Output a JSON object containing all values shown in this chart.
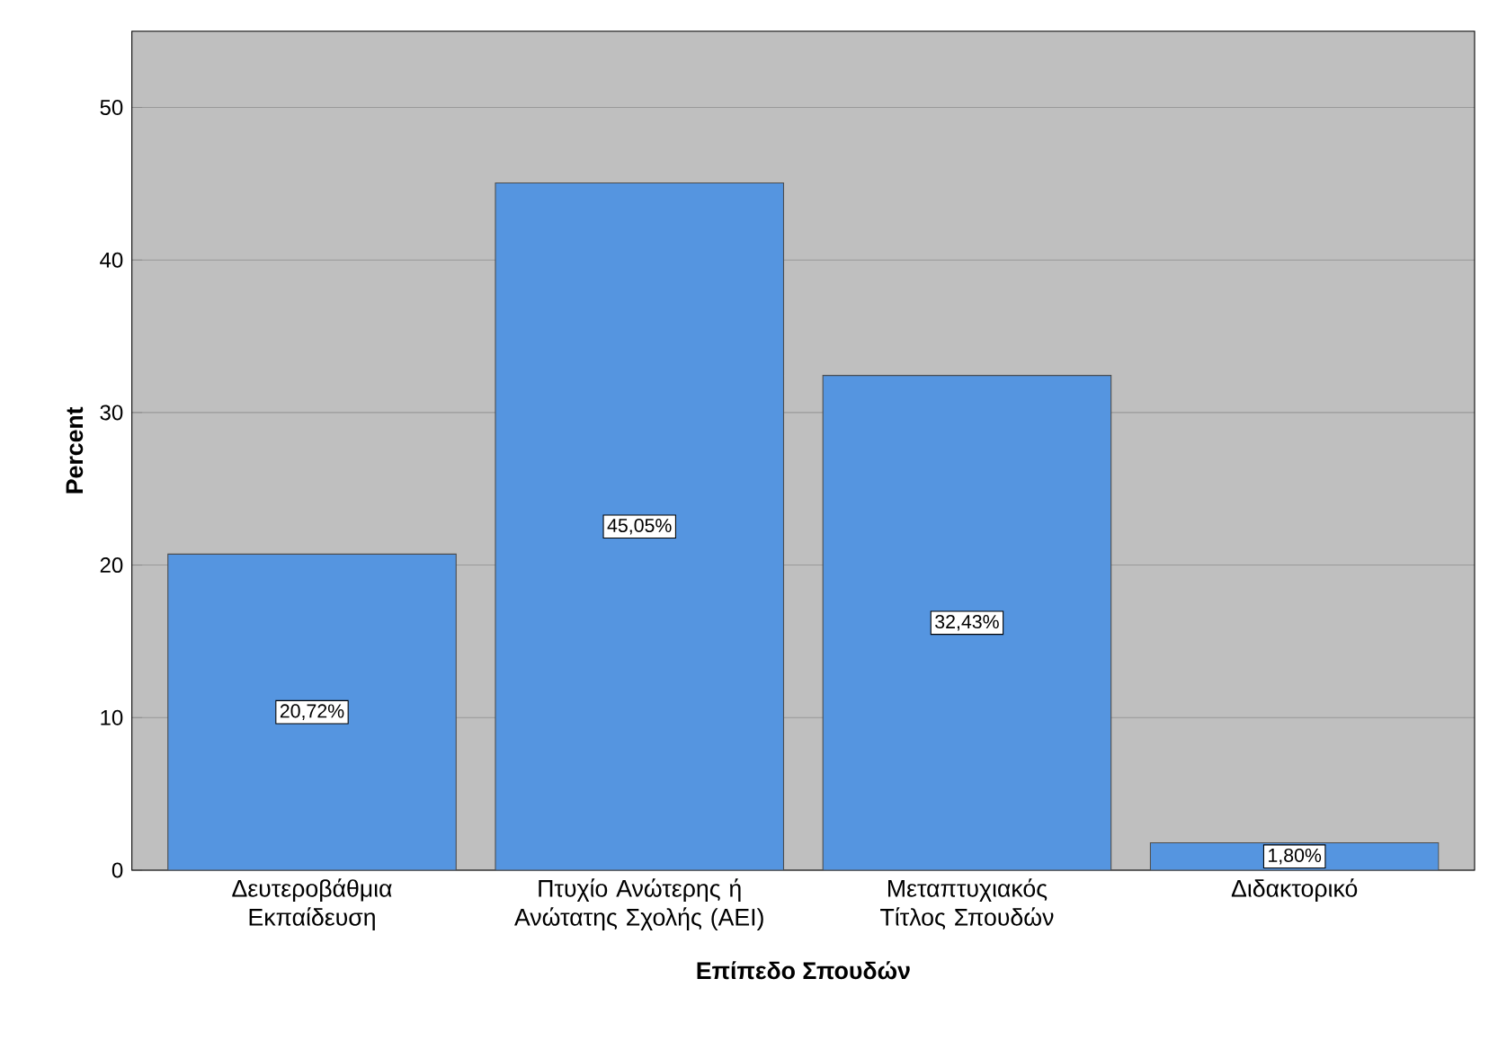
{
  "chart_data": {
    "type": "bar",
    "xlabel": "Επίπεδο Σπουδών",
    "ylabel": "Percent",
    "categories": [
      "Δευτεροβάθμια Εκπαίδευση",
      "Πτυχίο Ανώτερης ή Ανώτατης Σχολής (ΑΕΙ)",
      "Μεταπτυχιακός Τίτλος Σπουδών",
      "Διδακτορικό"
    ],
    "values": [
      20.72,
      45.05,
      32.43,
      1.8
    ],
    "value_labels": [
      "20,72%",
      "45,05%",
      "32,43%",
      "1,80%"
    ],
    "color": "#5595e0",
    "ylim": [
      0,
      55
    ],
    "yticks": [
      0,
      10,
      20,
      30,
      40,
      50
    ],
    "grid": "y"
  }
}
